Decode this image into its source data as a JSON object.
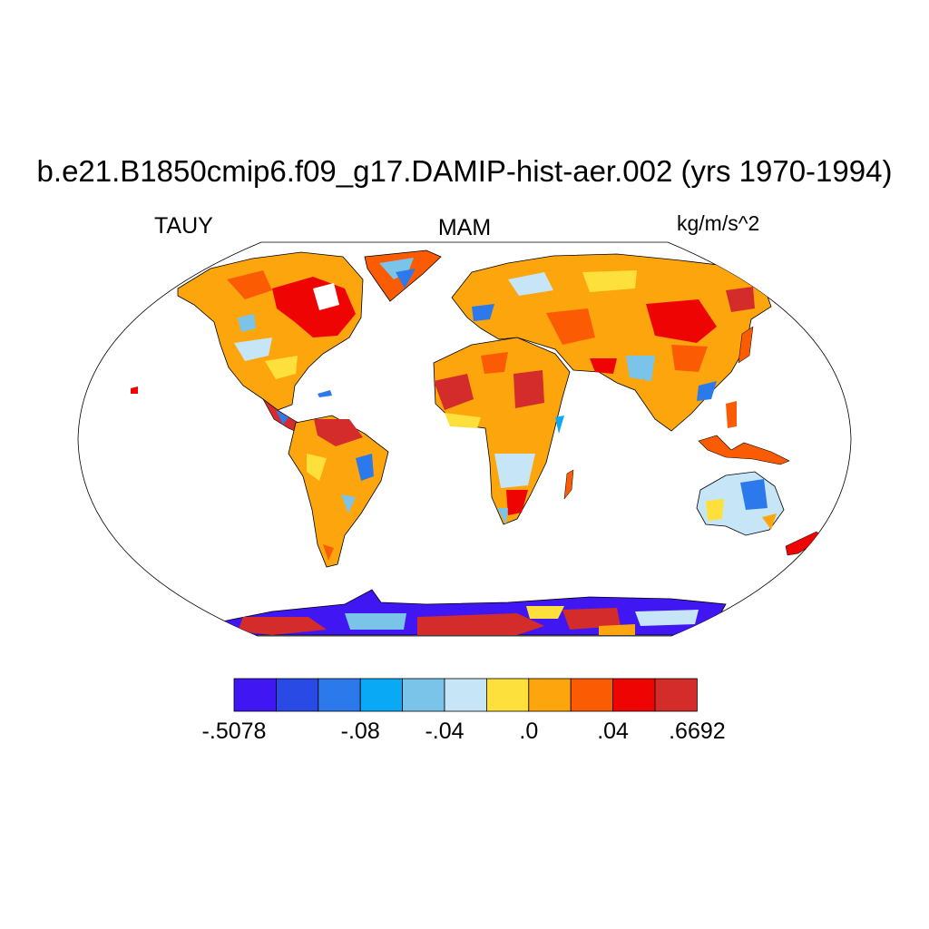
{
  "title": "b.e21.B1850cmip6.f09_g17.DAMIP-hist-aer.002 (yrs 1970-1994)",
  "left_label": "TAUY",
  "center_label": "MAM",
  "right_label": "kg/m/s^2",
  "projection": "Robinson",
  "colorbar": {
    "colors": [
      "#4016f2",
      "#2a4ae5",
      "#2c79ec",
      "#09a9f5",
      "#7ac4ea",
      "#c6e5f6",
      "#fde03b",
      "#fca50c",
      "#fb5b03",
      "#ef0404",
      "#d42c2a"
    ],
    "labels": [
      {
        "text": "-.5078",
        "boundary": 0
      },
      {
        "text": "-.08",
        "boundary": 3
      },
      {
        "text": "-.04",
        "boundary": 5
      },
      {
        "text": ".0",
        "boundary": 7
      },
      {
        "text": ".04",
        "boundary": 9
      },
      {
        "text": ".6692",
        "boundary": 11
      }
    ]
  }
}
